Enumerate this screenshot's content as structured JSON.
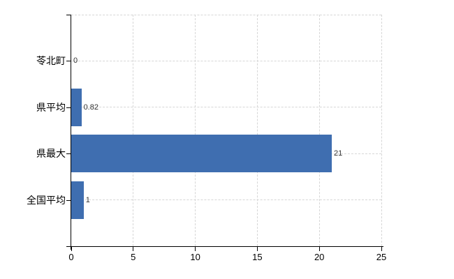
{
  "chart_data": {
    "type": "bar",
    "orientation": "horizontal",
    "title": "",
    "xlabel": "",
    "ylabel": "",
    "categories": [
      "苓北町",
      "県平均",
      "県最大",
      "全国平均"
    ],
    "values": [
      0,
      0.82,
      21,
      1
    ],
    "value_labels": [
      "0",
      "0.82",
      "21",
      "1"
    ],
    "x_ticks": [
      0,
      5,
      10,
      15,
      20,
      25
    ],
    "x_tick_labels": [
      "0",
      "5",
      "10",
      "15",
      "20",
      "25"
    ],
    "xlim": [
      0,
      25
    ],
    "grid": true,
    "legend": false,
    "colors": {
      "bar": "#3f6eb0",
      "grid": "#d6d6d6",
      "axis": "#000000",
      "category_text": "#000000",
      "value_text": "#333333",
      "background": "#ffffff"
    }
  }
}
